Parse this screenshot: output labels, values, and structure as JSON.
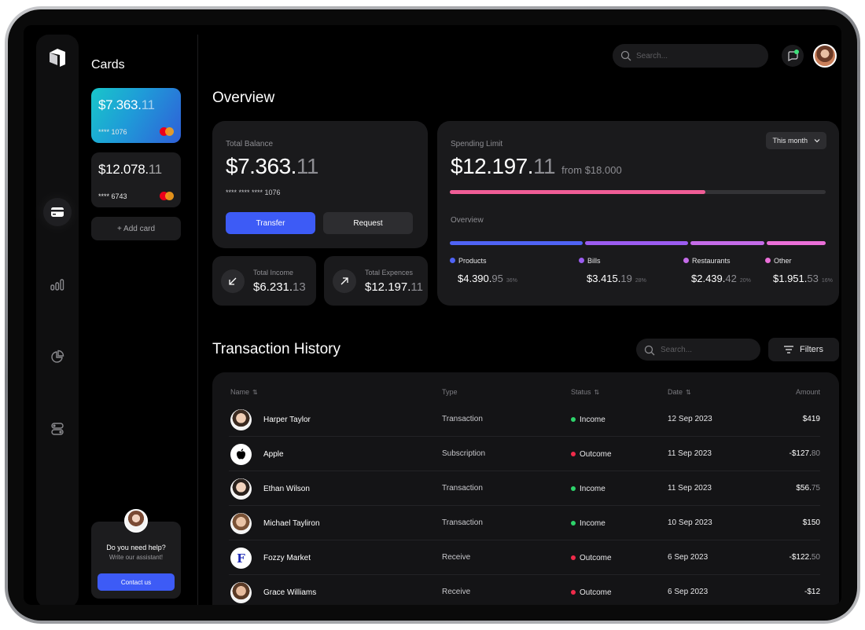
{
  "sidebar": {
    "nav": [
      "logo-icon",
      "card-icon",
      "chart-bars-icon",
      "pie-chart-icon",
      "toggles-icon"
    ]
  },
  "cards_panel": {
    "title": "Cards",
    "cards": [
      {
        "amount_main": "$7.363.",
        "amount_dec": "11",
        "number": "**** 1076"
      },
      {
        "amount_main": "$12.078.",
        "amount_dec": "11",
        "number": "**** 6743"
      }
    ],
    "add_card": "+ Add card",
    "help": {
      "title": "Do you need help?",
      "subtitle": "Write our assistant!",
      "button": "Contact us"
    }
  },
  "topbar": {
    "search_placeholder": "Search..."
  },
  "overview": {
    "title": "Overview",
    "balance": {
      "label": "Total Balance",
      "amount_main": "$7.363.",
      "amount_dec": "11",
      "card_number": "**** **** **** 1076",
      "transfer": "Transfer",
      "request": "Request"
    },
    "income": {
      "label": "Total Income",
      "main": "$6.231.",
      "dec": "13"
    },
    "expenses": {
      "label": "Total Expences",
      "main": "$12.197.",
      "dec": "11"
    },
    "spending": {
      "label": "Spending Limit",
      "amount_main": "$12.197.",
      "amount_dec": "11",
      "from": "from $18.000",
      "period": "This month",
      "progress": 0.68,
      "sub_label": "Overview",
      "categories": [
        {
          "name": "Products",
          "main": "$4.390.",
          "dec": "95",
          "pct": "36%",
          "color": "#4f63f5",
          "share": 0.36
        },
        {
          "name": "Bills",
          "main": "$3.415.",
          "dec": "19",
          "pct": "28%",
          "color": "#9b5cf0",
          "share": 0.28
        },
        {
          "name": "Restaurants",
          "main": "$2.439.",
          "dec": "42",
          "pct": "20%",
          "color": "#c46be8",
          "share": 0.2
        },
        {
          "name": "Other",
          "main": "$1.951.",
          "dec": "53",
          "pct": "16%",
          "color": "#ea6fd8",
          "share": 0.16
        }
      ]
    }
  },
  "transactions": {
    "title": "Transaction History",
    "search_placeholder": "Search...",
    "filters": "Filters",
    "headers": {
      "name": "Name",
      "type": "Type",
      "status": "Status",
      "date": "Date",
      "amount": "Amount"
    },
    "sort_glyph": "⇅",
    "rows": [
      {
        "name": "Harper Taylor",
        "type": "Transaction",
        "status": "Income",
        "status_color": "#2ed36b",
        "date": "12 Sep 2023",
        "amount_main": "$419",
        "amount_dec": "",
        "avatar": "person"
      },
      {
        "name": "Apple",
        "type": "Subscription",
        "status": "Outcome",
        "status_color": "#ef2b4a",
        "date": "11 Sep 2023",
        "amount_main": "-$127.",
        "amount_dec": "80",
        "avatar": "apple"
      },
      {
        "name": "Ethan Wilson",
        "type": "Transaction",
        "status": "Income",
        "status_color": "#2ed36b",
        "date": "11 Sep 2023",
        "amount_main": "$56.",
        "amount_dec": "75",
        "avatar": "person"
      },
      {
        "name": "Michael Tayliron",
        "type": "Transaction",
        "status": "Income",
        "status_color": "#2ed36b",
        "date": "10 Sep 2023",
        "amount_main": "$150",
        "amount_dec": "",
        "avatar": "person"
      },
      {
        "name": "Fozzy Market",
        "type": "Receive",
        "status": "Outcome",
        "status_color": "#ef2b4a",
        "date": "6 Sep 2023",
        "amount_main": "-$122.",
        "amount_dec": "50",
        "avatar": "fozzy",
        "avatar_letter": "F"
      },
      {
        "name": "Grace Williams",
        "type": "Receive",
        "status": "Outcome",
        "status_color": "#ef2b4a",
        "date": "6 Sep 2023",
        "amount_main": "-$12",
        "amount_dec": "",
        "avatar": "person"
      }
    ]
  }
}
